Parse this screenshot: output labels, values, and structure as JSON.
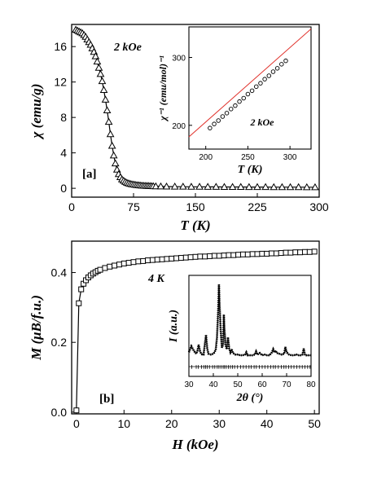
{
  "chart_data": [
    {
      "id": "a",
      "type": "scatter",
      "panel_label": "[a]",
      "annotation": "2 kOe",
      "xlabel": "T (K)",
      "ylabel": "χ (emu/g)",
      "xlim": [
        0,
        300
      ],
      "ylim": [
        -1,
        18.5
      ],
      "xticks": [
        "0",
        "75",
        "150",
        "225",
        "300"
      ],
      "yticks": [
        "0",
        "4",
        "8",
        "12",
        "16"
      ],
      "series": [
        {
          "marker": "triangle",
          "x": [
            5,
            7,
            9,
            11,
            13,
            15,
            17,
            19,
            21,
            23,
            25,
            27,
            29,
            31,
            33,
            35,
            37,
            39,
            41,
            43,
            45,
            47,
            49,
            51,
            53,
            55,
            57,
            59,
            61,
            63,
            65,
            67,
            69,
            71,
            73,
            75,
            77,
            79,
            81,
            83,
            85,
            87,
            89,
            91,
            93,
            95,
            97,
            99,
            102,
            108,
            115,
            125,
            135,
            145,
            155,
            165,
            175,
            185,
            195,
            205,
            215,
            225,
            235,
            245,
            255,
            265,
            275,
            285,
            295
          ],
          "y": [
            17.9,
            17.8,
            17.7,
            17.6,
            17.5,
            17.3,
            17.1,
            16.8,
            16.5,
            16.2,
            15.8,
            15.4,
            14.9,
            14.3,
            13.6,
            12.9,
            12.1,
            11.1,
            10.0,
            8.8,
            7.5,
            6.1,
            4.8,
            3.7,
            2.8,
            2.1,
            1.6,
            1.25,
            1.0,
            0.85,
            0.72,
            0.62,
            0.55,
            0.5,
            0.45,
            0.42,
            0.39,
            0.36,
            0.34,
            0.32,
            0.3,
            0.29,
            0.28,
            0.27,
            0.26,
            0.25,
            0.24,
            0.23,
            0.22,
            0.21,
            0.2,
            0.19,
            0.18,
            0.17,
            0.17,
            0.16,
            0.16,
            0.15,
            0.15,
            0.15,
            0.14,
            0.14,
            0.14,
            0.13,
            0.13,
            0.13,
            0.13,
            0.12,
            0.12
          ]
        }
      ],
      "inset": {
        "type": "scatter",
        "annotation": "2 kOe",
        "xlabel": "T (K)",
        "ylabel": "χ⁻¹ (emu/mol)⁻¹",
        "xlim": [
          180,
          325
        ],
        "ylim": [
          165,
          345
        ],
        "xticks": [
          "200",
          "250",
          "300"
        ],
        "yticks": [
          "200",
          "300"
        ],
        "fit_color": "#e0302a",
        "fit_line": {
          "x": [
            180,
            325
          ],
          "y": [
            183,
            342
          ]
        },
        "x": [
          205,
          210,
          215,
          220,
          225,
          230,
          235,
          240,
          245,
          250,
          255,
          260,
          265,
          270,
          275,
          280,
          285,
          290,
          295
        ],
        "y": [
          196,
          202,
          207,
          213,
          218,
          224,
          229,
          235,
          240,
          246,
          251,
          257,
          262,
          268,
          273,
          279,
          284,
          290,
          295
        ]
      }
    },
    {
      "id": "b",
      "type": "scatter",
      "panel_label": "[b]",
      "annotation": "4 K",
      "xlabel": "H (kOe)",
      "ylabel": "M (μB/f.u.)",
      "xlim": [
        -1,
        51
      ],
      "ylim": [
        -0.005,
        0.49
      ],
      "xticks": [
        "0",
        "10",
        "20",
        "30",
        "40",
        "50"
      ],
      "yticks": [
        "0.0",
        "0.2",
        "0.4"
      ],
      "series": [
        {
          "marker": "square",
          "x": [
            0,
            0.5,
            1,
            1.5,
            2,
            2.5,
            3,
            3.5,
            4,
            4.5,
            5,
            6,
            7,
            8,
            9,
            10,
            11,
            12,
            13,
            14,
            15,
            16,
            17,
            18,
            19,
            20,
            21,
            22,
            23,
            24,
            25,
            26,
            27,
            28,
            29,
            30,
            31,
            32,
            33,
            34,
            35,
            36,
            37,
            38,
            39,
            40,
            41,
            42,
            43,
            44,
            45,
            46,
            47,
            48,
            49,
            50
          ],
          "y": [
            0.005,
            0.312,
            0.352,
            0.368,
            0.378,
            0.386,
            0.392,
            0.397,
            0.401,
            0.405,
            0.408,
            0.413,
            0.417,
            0.42,
            0.423,
            0.426,
            0.428,
            0.43,
            0.432,
            0.433,
            0.435,
            0.436,
            0.437,
            0.438,
            0.439,
            0.44,
            0.441,
            0.442,
            0.443,
            0.444,
            0.445,
            0.446,
            0.446,
            0.447,
            0.448,
            0.448,
            0.449,
            0.45,
            0.45,
            0.451,
            0.452,
            0.452,
            0.453,
            0.453,
            0.454,
            0.454,
            0.455,
            0.455,
            0.456,
            0.457,
            0.457,
            0.458,
            0.458,
            0.459,
            0.459,
            0.46
          ]
        }
      ],
      "inset": {
        "type": "line",
        "xlabel": "2θ (°)",
        "ylabel": "I (a.u.)",
        "xlim": [
          30,
          80
        ],
        "ylim": [
          -0.22,
          1.12
        ],
        "xticks": [
          "30",
          "40",
          "50",
          "60",
          "70",
          "80"
        ],
        "pattern_x": [
          30,
          31,
          32,
          33,
          33.5,
          34,
          34.5,
          35,
          35.5,
          36,
          36.5,
          37,
          37.5,
          38,
          39,
          40,
          40.5,
          41,
          41.5,
          42,
          42.3,
          42.6,
          43,
          43.5,
          44,
          44.3,
          44.6,
          45,
          45.5,
          46,
          46.5,
          47,
          47.5,
          48,
          49,
          50,
          51,
          52,
          53,
          53.5,
          54,
          55,
          56,
          57,
          57.5,
          58,
          59,
          60,
          61,
          62,
          63,
          64,
          64.5,
          65,
          65.5,
          66,
          67,
          68,
          69,
          69.5,
          70,
          71,
          72,
          73,
          74,
          75,
          76,
          76.5,
          77,
          77.5,
          78,
          79,
          80
        ],
        "pattern_y": [
          0.1,
          0.18,
          0.12,
          0.08,
          0.12,
          0.2,
          0.12,
          0.08,
          0.07,
          0.07,
          0.2,
          0.33,
          0.15,
          0.08,
          0.07,
          0.08,
          0.1,
          0.14,
          0.3,
          0.66,
          1.0,
          0.7,
          0.4,
          0.16,
          0.2,
          0.6,
          0.38,
          0.2,
          0.14,
          0.3,
          0.15,
          0.1,
          0.14,
          0.09,
          0.07,
          0.07,
          0.06,
          0.06,
          0.07,
          0.1,
          0.06,
          0.06,
          0.06,
          0.07,
          0.11,
          0.07,
          0.09,
          0.06,
          0.07,
          0.06,
          0.06,
          0.1,
          0.14,
          0.1,
          0.12,
          0.09,
          0.08,
          0.07,
          0.08,
          0.17,
          0.1,
          0.07,
          0.06,
          0.06,
          0.07,
          0.06,
          0.06,
          0.07,
          0.15,
          0.07,
          0.06,
          0.06,
          0.06
        ],
        "reflection_positions": [
          31.2,
          33.0,
          33.8,
          35.2,
          36.1,
          36.8,
          37.5,
          38.4,
          39.7,
          40.6,
          41.6,
          42.3,
          43.1,
          44.0,
          44.6,
          45.3,
          46.2,
          47.0,
          47.8,
          48.7,
          49.9,
          51.2,
          52.3,
          53.4,
          54.6,
          55.5,
          56.7,
          57.6,
          58.8,
          60.0,
          61.1,
          62.3,
          63.5,
          64.6,
          65.4,
          66.6,
          67.8,
          68.9,
          69.7,
          70.8,
          71.9,
          73.0,
          74.2,
          75.3,
          76.4,
          77.5,
          78.6,
          79.6
        ]
      }
    }
  ]
}
